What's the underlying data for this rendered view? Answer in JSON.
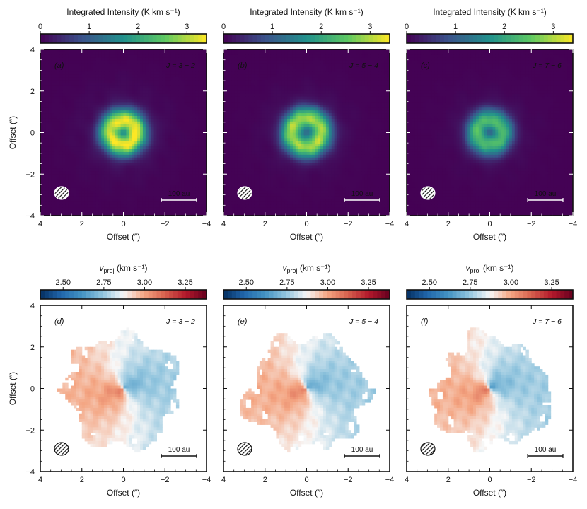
{
  "chart_data": {
    "type": "heatmap",
    "title": "",
    "top_row": {
      "colorbar": {
        "label": "Integrated Intensity",
        "unit": "(K km s⁻¹)",
        "ticks": [
          "0",
          "1",
          "2",
          "3"
        ],
        "range": [
          0,
          3.4
        ],
        "cmap": [
          "#440154",
          "#3b528b",
          "#21918c",
          "#5ec962",
          "#fde725"
        ]
      },
      "panels": [
        {
          "tag": "(a)",
          "transition": "J = 3 − 2",
          "peak": 3.3,
          "ring_radius": 0.6
        },
        {
          "tag": "(b)",
          "transition": "J = 5 − 4",
          "peak": 2.9,
          "ring_radius": 0.7
        },
        {
          "tag": "(c)",
          "transition": "J = 7 − 6",
          "peak": 2.3,
          "ring_radius": 0.6
        }
      ]
    },
    "bottom_row": {
      "colorbar": {
        "label": "v",
        "label_sub": "proj",
        "unit": "(km s⁻¹)",
        "ticks": [
          "2.50",
          "2.75",
          "3.00",
          "3.25"
        ],
        "range": [
          2.36,
          3.38
        ],
        "cmap": [
          "#053061",
          "#2166ac",
          "#4393c3",
          "#92c5de",
          "#f7f7f7",
          "#f4a582",
          "#d6604d",
          "#b2182b",
          "#67001f"
        ]
      },
      "panels": [
        {
          "tag": "(d)",
          "transition": "J = 3 − 2"
        },
        {
          "tag": "(e)",
          "transition": "J = 5 − 4"
        },
        {
          "tag": "(f)",
          "transition": "J = 7 − 6"
        }
      ]
    },
    "axes": {
      "xlabel": "Offset",
      "ylabel": "Offset",
      "unit": "(″)",
      "xlim": [
        4,
        -4
      ],
      "ylim": [
        -4,
        4
      ],
      "x_ticks": [
        "4",
        "2",
        "0",
        "−2",
        "−4"
      ],
      "y_ticks": [
        "4",
        "2",
        "0",
        "−2",
        "−4"
      ]
    },
    "scalebar_label": "100 au",
    "scalebar_length_arcsec": 1.7
  }
}
